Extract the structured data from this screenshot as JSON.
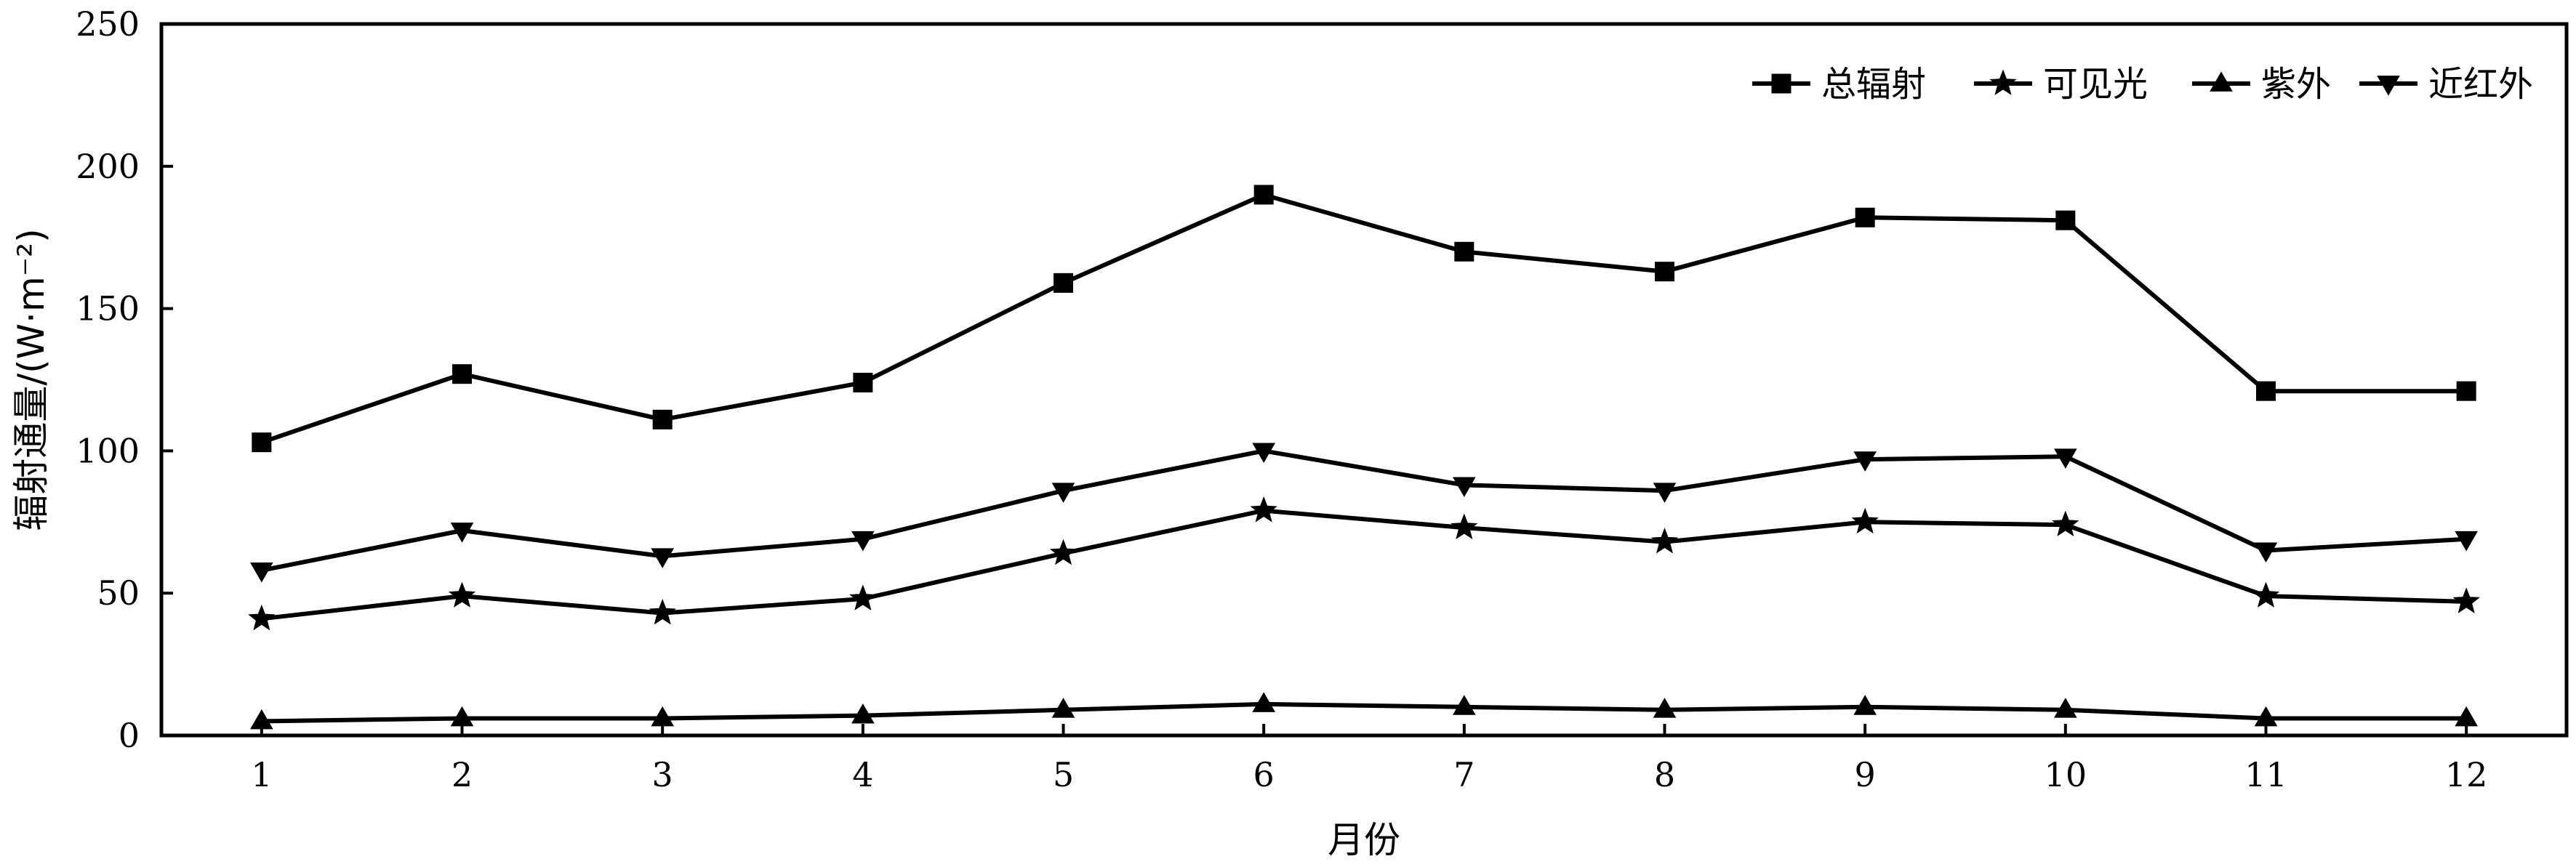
{
  "chart_data": {
    "type": "line",
    "title": "",
    "xlabel": "月份",
    "ylabel": "辐射通量/(W·m⁻²)",
    "categories": [
      "1",
      "2",
      "3",
      "4",
      "5",
      "6",
      "7",
      "8",
      "9",
      "10",
      "11",
      "12"
    ],
    "x": [
      1,
      2,
      3,
      4,
      5,
      6,
      7,
      8,
      9,
      10,
      11,
      12
    ],
    "xlim": [
      0.5,
      12.5
    ],
    "ylim": [
      0,
      250
    ],
    "yticks": [
      0,
      50,
      100,
      150,
      200,
      250
    ],
    "grid": false,
    "legend_position": "top-right",
    "series": [
      {
        "name": "总辐射",
        "marker": "square",
        "values": [
          103,
          127,
          111,
          124,
          159,
          190,
          170,
          163,
          182,
          181,
          121,
          121
        ]
      },
      {
        "name": "可见光",
        "marker": "star",
        "values": [
          41,
          49,
          43,
          48,
          64,
          79,
          73,
          68,
          75,
          74,
          49,
          47
        ]
      },
      {
        "name": "紫外",
        "marker": "triangle-up",
        "values": [
          5,
          6,
          6,
          7,
          9,
          11,
          10,
          9,
          10,
          9,
          6,
          6
        ]
      },
      {
        "name": "近红外",
        "marker": "triangle-down",
        "values": [
          58,
          72,
          63,
          69,
          86,
          100,
          88,
          86,
          97,
          98,
          65,
          69
        ]
      }
    ],
    "colors": {
      "line": "#000000",
      "background": "#ffffff"
    }
  }
}
